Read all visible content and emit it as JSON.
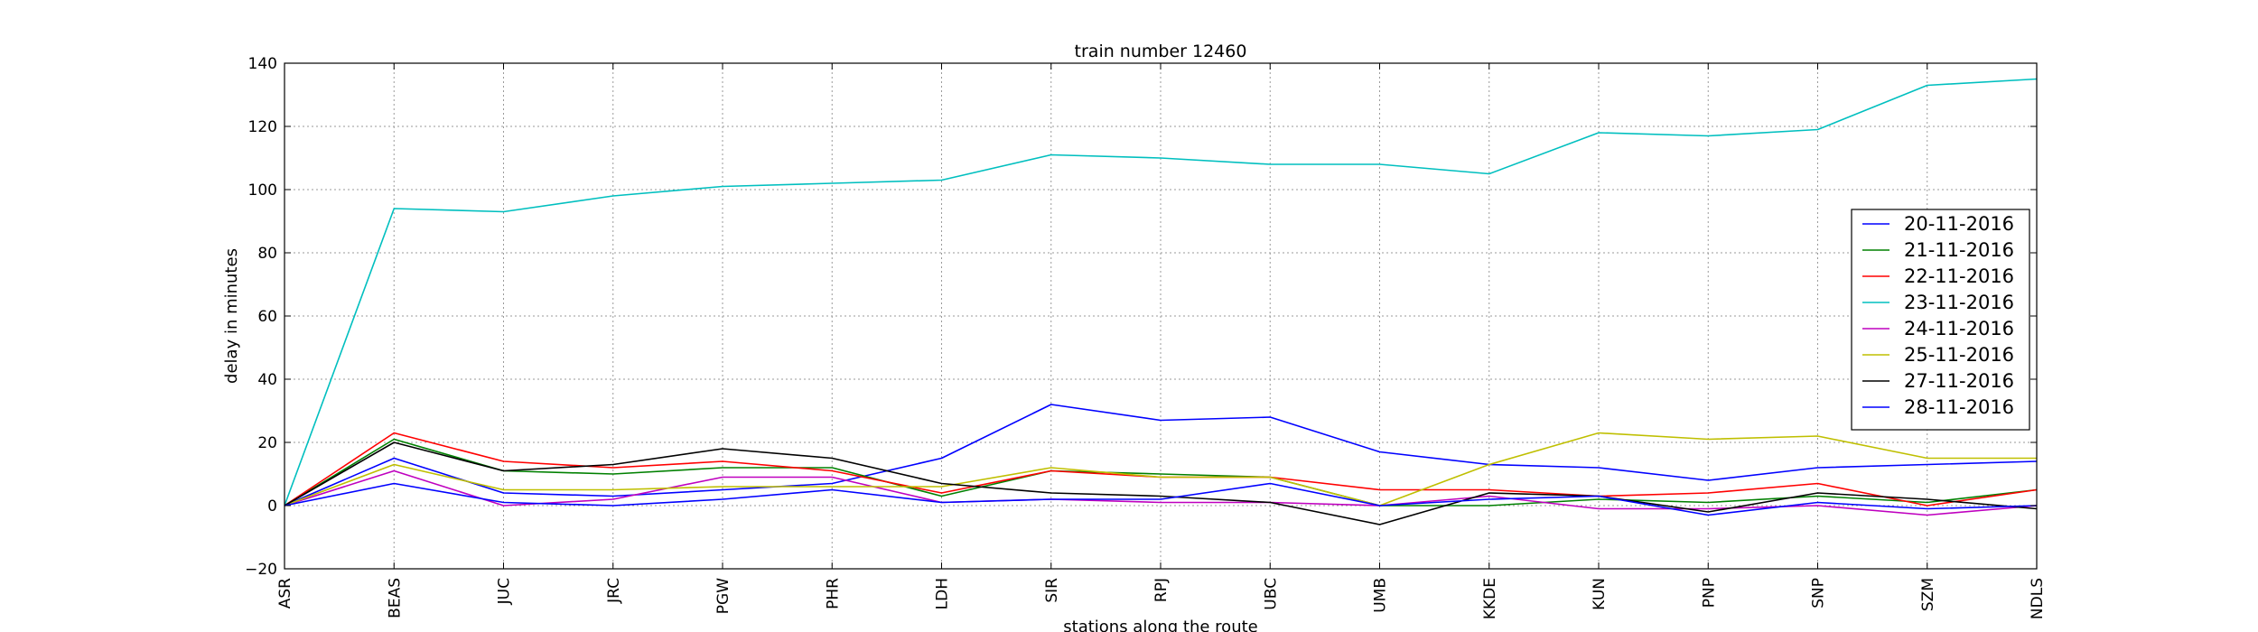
{
  "chart_data": {
    "type": "line",
    "title": "train number 12460",
    "xlabel": "stations along the route",
    "ylabel": "delay in minutes",
    "ylim": [
      -20,
      140
    ],
    "yticks": [
      -20,
      0,
      20,
      40,
      60,
      80,
      100,
      120,
      140
    ],
    "grid": true,
    "legend_position": "right",
    "categories": [
      "ASR",
      "BEAS",
      "JUC",
      "JRC",
      "PGW",
      "PHR",
      "LDH",
      "SIR",
      "RPJ",
      "UBC",
      "UMB",
      "KKDE",
      "KUN",
      "PNP",
      "SNP",
      "SZM",
      "NDLS"
    ],
    "series": [
      {
        "name": "20-11-2016",
        "color": "#0000ff",
        "values": [
          0,
          15,
          4,
          3,
          5,
          7,
          15,
          32,
          27,
          28,
          17,
          13,
          12,
          8,
          12,
          13,
          14
        ]
      },
      {
        "name": "21-11-2016",
        "color": "#008000",
        "values": [
          0,
          21,
          11,
          10,
          12,
          12,
          3,
          11,
          10,
          9,
          0,
          0,
          2,
          1,
          3,
          1,
          5
        ]
      },
      {
        "name": "22-11-2016",
        "color": "#ff0000",
        "values": [
          0,
          23,
          14,
          12,
          14,
          11,
          4,
          11,
          9,
          9,
          5,
          5,
          3,
          4,
          7,
          0,
          5
        ]
      },
      {
        "name": "23-11-2016",
        "color": "#00bfbf",
        "values": [
          0,
          94,
          93,
          98,
          101,
          102,
          103,
          111,
          110,
          108,
          108,
          105,
          118,
          117,
          119,
          133,
          135
        ]
      },
      {
        "name": "24-11-2016",
        "color": "#bf00bf",
        "values": [
          0,
          11,
          0,
          2,
          9,
          9,
          1,
          2,
          1,
          1,
          0,
          3,
          -1,
          -1,
          0,
          -3,
          0
        ]
      },
      {
        "name": "25-11-2016",
        "color": "#bfbf00",
        "values": [
          0,
          13,
          5,
          5,
          6,
          6,
          6,
          12,
          9,
          9,
          0,
          13,
          23,
          21,
          22,
          15,
          15
        ]
      },
      {
        "name": "27-11-2016",
        "color": "#000000",
        "values": [
          0,
          20,
          11,
          13,
          18,
          15,
          7,
          4,
          3,
          1,
          -6,
          4,
          3,
          -2,
          4,
          2,
          -1
        ]
      },
      {
        "name": "28-11-2016",
        "color": "#0000ff",
        "values": [
          0,
          7,
          1,
          0,
          2,
          5,
          1,
          2,
          2,
          7,
          0,
          2,
          3,
          -3,
          1,
          -1,
          0
        ]
      }
    ]
  }
}
